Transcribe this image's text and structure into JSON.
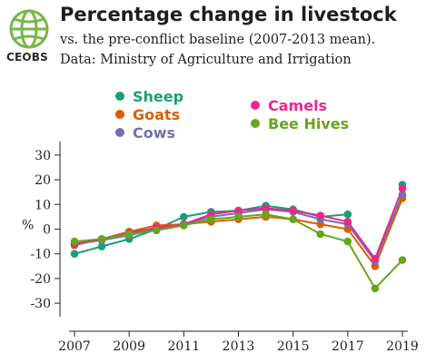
{
  "header": {
    "title": "Percentage change in livestock",
    "subtitle_line1": "vs. the pre-conflict baseline (2007-2013 mean).",
    "subtitle_line2": "Data: Ministry of Agriculture and Irrigation",
    "logo_text": "CEOBS",
    "logo_icon": "globe-icon",
    "logo_color": "#7ab648"
  },
  "chart_data": {
    "type": "line",
    "title": "Percentage change in livestock",
    "xlabel": "",
    "ylabel": "%",
    "x": [
      2007,
      2008,
      2009,
      2010,
      2011,
      2012,
      2013,
      2014,
      2015,
      2016,
      2017,
      2018,
      2019
    ],
    "x_tick_labels": [
      "2007",
      "2009",
      "2011",
      "2013",
      "2015",
      "2017",
      "2019"
    ],
    "y_ticks": [
      30,
      20,
      10,
      0,
      -10,
      -20,
      -30
    ],
    "ylim": [
      -34,
      34
    ],
    "legend_position": "top",
    "grid": false,
    "series": [
      {
        "name": "Sheep",
        "color": "#1b9e77",
        "values": [
          -10,
          -7,
          -4,
          0,
          5,
          7,
          7.5,
          9.5,
          8,
          5,
          6,
          null,
          18
        ]
      },
      {
        "name": "Goats",
        "color": "#d95f02",
        "values": [
          -6.5,
          -4,
          -1,
          1.5,
          2,
          3,
          4,
          5,
          4,
          2,
          0,
          -15,
          12.5
        ]
      },
      {
        "name": "Cows",
        "color": "#7570b3",
        "values": [
          -6,
          -4.5,
          -2.5,
          0,
          2,
          5,
          6.5,
          8,
          7,
          4,
          2,
          -13,
          14
        ]
      },
      {
        "name": "Camels",
        "color": "#e7298a",
        "values": [
          -6,
          -4,
          -1.5,
          0.5,
          2,
          6,
          7.5,
          8.5,
          7.5,
          5.5,
          3,
          -12,
          16.5
        ]
      },
      {
        "name": "Bee Hives",
        "color": "#66a61e",
        "values": [
          -5,
          -4,
          -2,
          -0.5,
          1.5,
          4,
          5,
          6,
          4,
          -2,
          -5,
          -24,
          -12.5
        ]
      }
    ]
  }
}
